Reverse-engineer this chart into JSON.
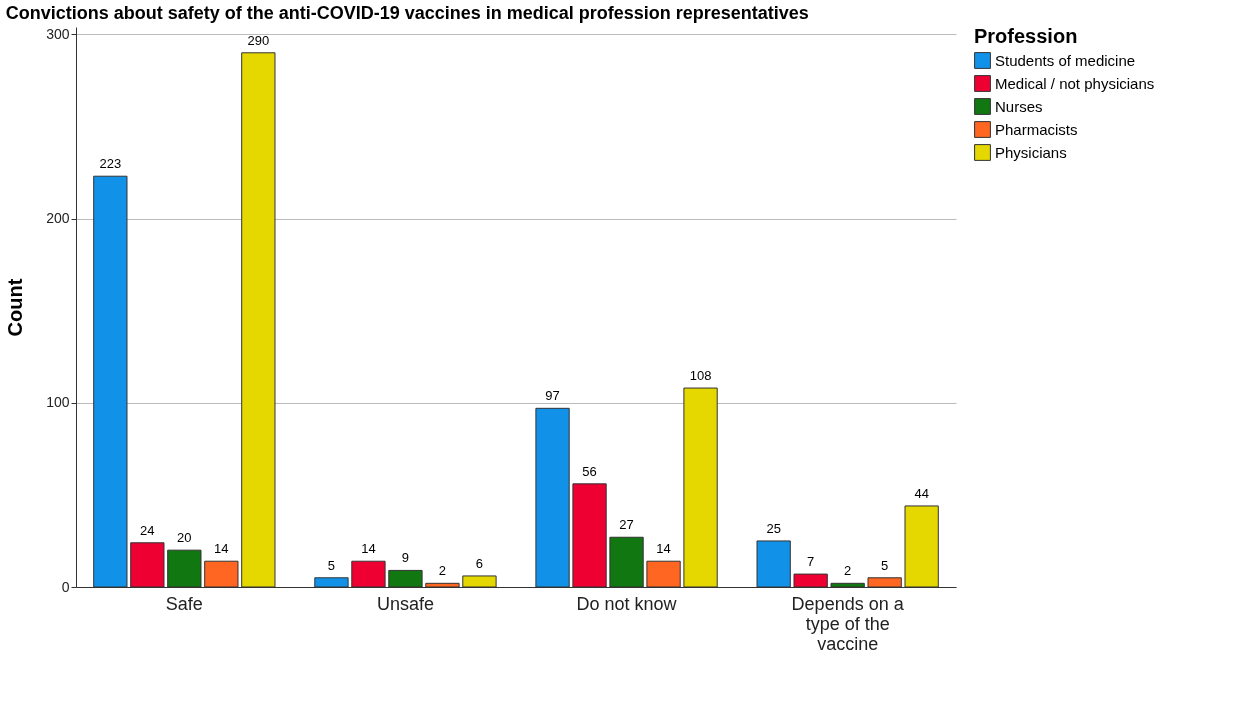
{
  "chart_data": {
    "type": "bar",
    "title": "Convictions about safety of the anti-COVID-19 vaccines in medical profession representatives",
    "ylabel": "Count",
    "legend_title": "Profession",
    "categories": [
      "Safe",
      "Unsafe",
      "Do not know",
      "Depends on a type of the vaccine"
    ],
    "series": [
      {
        "name": "Students of medicine",
        "color": "#1192e8",
        "values": [
          223,
          5,
          97,
          25
        ]
      },
      {
        "name": "Medical / not physicians",
        "color": "#ee0033",
        "values": [
          24,
          14,
          56,
          7
        ]
      },
      {
        "name": "Nurses",
        "color": "#117711",
        "values": [
          20,
          9,
          27,
          2
        ]
      },
      {
        "name": "Pharmacists",
        "color": "#ff6622",
        "values": [
          14,
          2,
          14,
          5
        ]
      },
      {
        "name": "Physicians",
        "color": "#e5d800",
        "values": [
          290,
          6,
          108,
          44
        ]
      }
    ],
    "ylim": [
      0,
      304
    ],
    "yticks": [
      0,
      100,
      200,
      300
    ],
    "grid": "y",
    "legend": "right",
    "data_labels": true
  }
}
